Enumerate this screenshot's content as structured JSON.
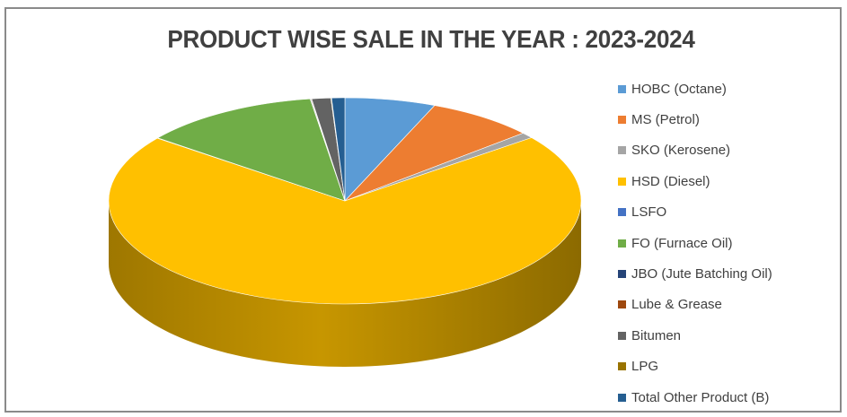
{
  "chart_data": {
    "type": "pie",
    "title": "PRODUCT WISE SALE IN THE YEAR : 2023-2024",
    "legend_position": "right",
    "three_d": true,
    "start_angle_deg": 0,
    "direction": "clockwise",
    "slices": [
      {
        "label": "HOBC (Octane)",
        "value": 6.2,
        "color": "#5b9bd5"
      },
      {
        "label": "MS (Petrol)",
        "value": 7.4,
        "color": "#ed7d31"
      },
      {
        "label": "SKO (Kerosene)",
        "value": 0.9,
        "color": "#a5a5a5"
      },
      {
        "label": "HSD (Diesel)",
        "value": 70.9,
        "color": "#ffc000"
      },
      {
        "label": "LSFO",
        "value": 0.05,
        "color": "#4472c4"
      },
      {
        "label": "FO (Furnace Oil)",
        "value": 12.2,
        "color": "#70ad47"
      },
      {
        "label": "JBO (Jute Batching Oil)",
        "value": 0.05,
        "color": "#264478"
      },
      {
        "label": "Lube & Grease",
        "value": 0.05,
        "color": "#9e480e"
      },
      {
        "label": "Bitumen",
        "value": 1.3,
        "color": "#636363"
      },
      {
        "label": "LPG",
        "value": 0.05,
        "color": "#997300"
      },
      {
        "label": "Total Other Product (B)",
        "value": 0.9,
        "color": "#255e91"
      }
    ]
  }
}
